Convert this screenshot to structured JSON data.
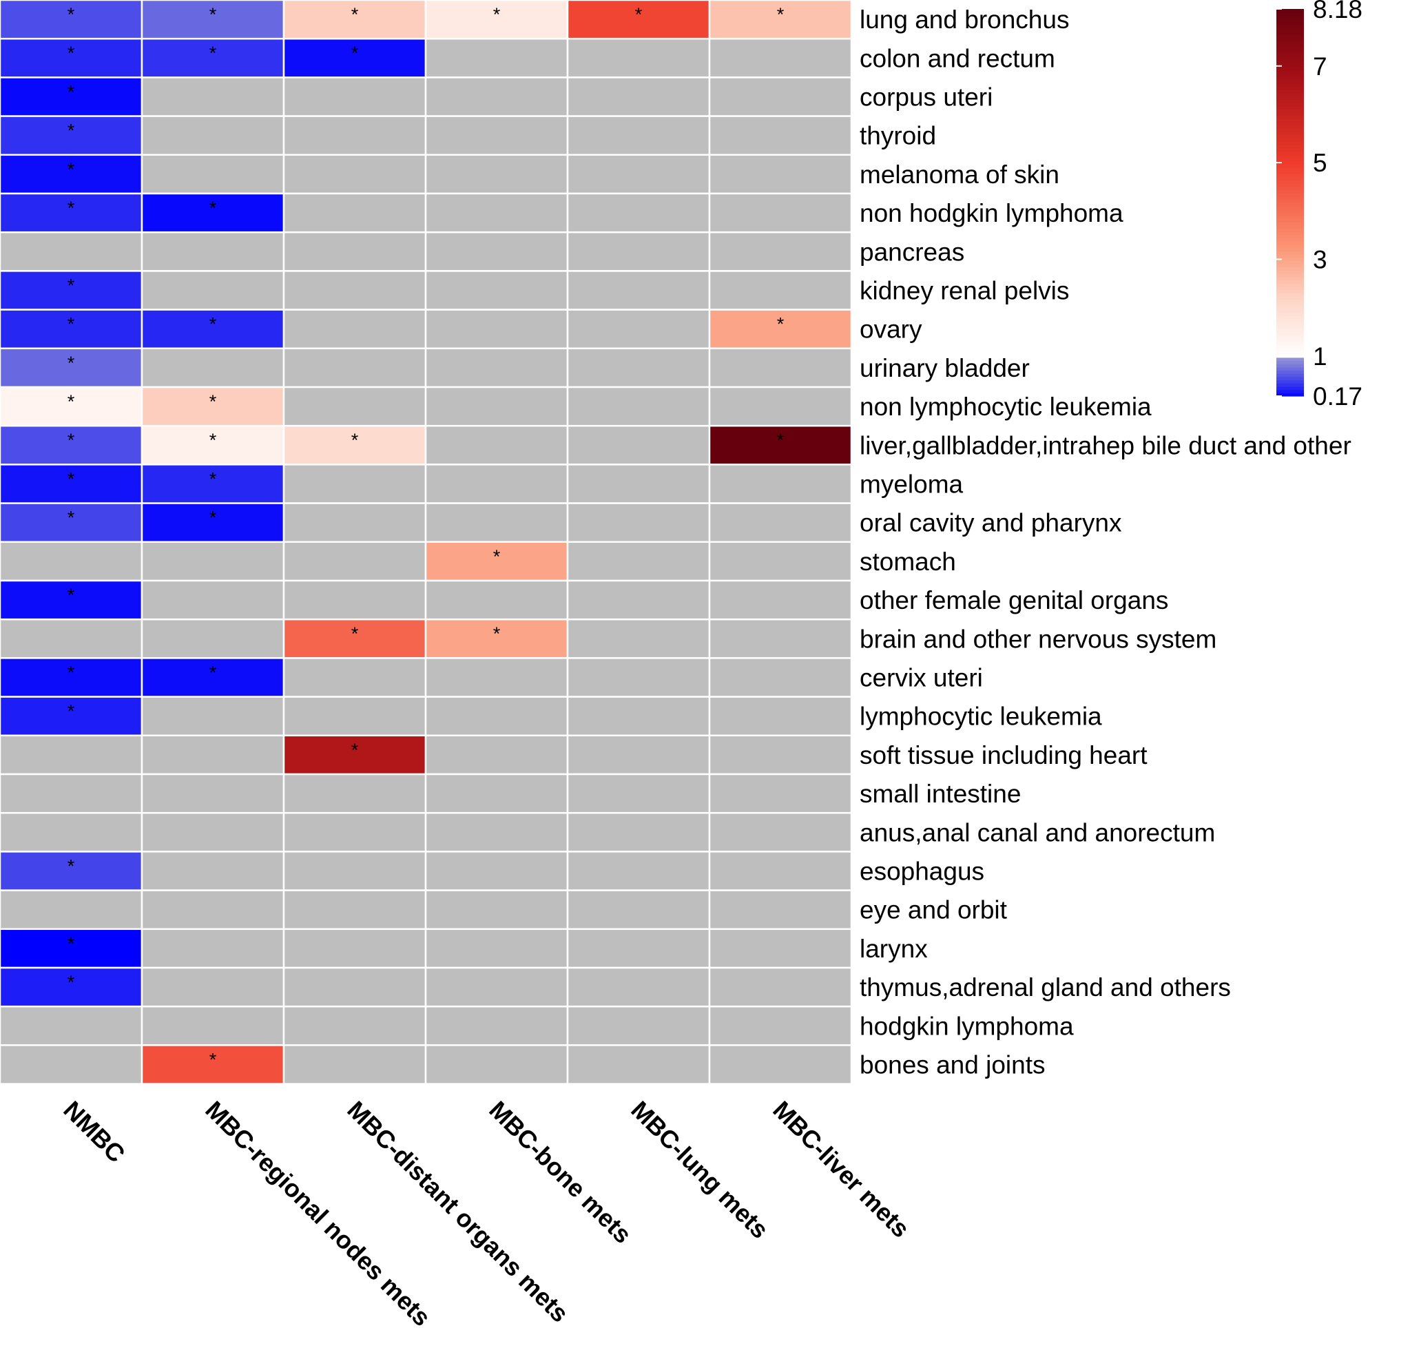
{
  "chart_data": {
    "type": "heatmap",
    "title": "",
    "columns": [
      "NMBC",
      "MBC-regional nodes mets",
      "MBC-distant organs mets",
      "MBC-bone mets",
      "MBC-lung mets",
      "MBC-liver mets"
    ],
    "rows": [
      "lung and bronchus",
      "colon and rectum",
      "corpus uteri",
      "thyroid",
      "melanoma of skin",
      "non hodgkin lymphoma",
      "pancreas",
      "kidney renal pelvis",
      "ovary",
      "urinary bladder",
      "non lymphocytic leukemia",
      "liver,gallbladder,intrahep bile duct and other",
      "myeloma",
      "oral cavity and pharynx",
      "stomach",
      "other female genital organs",
      "brain and other nervous system",
      "cervix uteri",
      "lymphocytic leukemia",
      "soft tissue including heart",
      "small intestine",
      "anus,anal canal and anorectum",
      "esophagus",
      "eye and orbit",
      "larynx",
      "thymus,adrenal gland and others",
      "hodgkin lymphoma",
      "bones and joints"
    ],
    "values": [
      [
        0.55,
        0.7,
        2.3,
        1.6,
        4.8,
        2.5
      ],
      [
        0.35,
        0.4,
        0.22,
        null,
        null,
        null
      ],
      [
        0.2,
        null,
        null,
        null,
        null,
        null
      ],
      [
        0.4,
        null,
        null,
        null,
        null,
        null
      ],
      [
        0.22,
        null,
        null,
        null,
        null,
        null
      ],
      [
        0.35,
        0.2,
        null,
        null,
        null,
        null
      ],
      [
        null,
        null,
        null,
        null,
        null,
        null
      ],
      [
        0.35,
        null,
        null,
        null,
        null,
        null
      ],
      [
        0.35,
        0.35,
        null,
        null,
        null,
        3.0
      ],
      [
        0.7,
        null,
        null,
        null,
        null,
        null
      ],
      [
        1.3,
        2.3,
        null,
        null,
        null,
        null
      ],
      [
        0.55,
        1.4,
        2.0,
        null,
        null,
        8.18
      ],
      [
        0.25,
        0.35,
        null,
        null,
        null,
        null
      ],
      [
        0.5,
        0.22,
        null,
        null,
        null,
        null
      ],
      [
        null,
        null,
        null,
        3.0,
        null,
        null
      ],
      [
        0.22,
        null,
        null,
        null,
        null,
        null
      ],
      [
        null,
        null,
        4.2,
        3.0,
        null,
        null
      ],
      [
        0.22,
        0.22,
        null,
        null,
        null,
        null
      ],
      [
        0.3,
        null,
        null,
        null,
        null,
        null
      ],
      [
        null,
        null,
        6.5,
        null,
        null,
        null
      ],
      [
        null,
        null,
        null,
        null,
        null,
        null
      ],
      [
        null,
        null,
        null,
        null,
        null,
        null
      ],
      [
        0.5,
        null,
        null,
        null,
        null,
        null
      ],
      [
        null,
        null,
        null,
        null,
        null,
        null
      ],
      [
        0.17,
        null,
        null,
        null,
        null,
        null
      ],
      [
        0.3,
        null,
        null,
        null,
        null,
        null
      ],
      [
        null,
        null,
        null,
        null,
        null,
        null
      ],
      [
        null,
        4.6,
        null,
        null,
        null,
        null
      ]
    ],
    "significant": [
      [
        true,
        true,
        true,
        true,
        true,
        true
      ],
      [
        true,
        true,
        true,
        false,
        false,
        false
      ],
      [
        true,
        false,
        false,
        false,
        false,
        false
      ],
      [
        true,
        false,
        false,
        false,
        false,
        false
      ],
      [
        true,
        false,
        false,
        false,
        false,
        false
      ],
      [
        true,
        true,
        false,
        false,
        false,
        false
      ],
      [
        false,
        false,
        false,
        false,
        false,
        false
      ],
      [
        true,
        false,
        false,
        false,
        false,
        false
      ],
      [
        true,
        true,
        false,
        false,
        false,
        true
      ],
      [
        true,
        false,
        false,
        false,
        false,
        false
      ],
      [
        true,
        true,
        false,
        false,
        false,
        false
      ],
      [
        true,
        true,
        true,
        false,
        false,
        true
      ],
      [
        true,
        true,
        false,
        false,
        false,
        false
      ],
      [
        true,
        true,
        false,
        false,
        false,
        false
      ],
      [
        false,
        false,
        false,
        true,
        false,
        false
      ],
      [
        true,
        false,
        false,
        false,
        false,
        false
      ],
      [
        false,
        false,
        true,
        true,
        false,
        false
      ],
      [
        true,
        true,
        false,
        false,
        false,
        false
      ],
      [
        true,
        false,
        false,
        false,
        false,
        false
      ],
      [
        false,
        false,
        true,
        false,
        false,
        false
      ],
      [
        false,
        false,
        false,
        false,
        false,
        false
      ],
      [
        false,
        false,
        false,
        false,
        false,
        false
      ],
      [
        true,
        false,
        false,
        false,
        false,
        false
      ],
      [
        false,
        false,
        false,
        false,
        false,
        false
      ],
      [
        true,
        false,
        false,
        false,
        false,
        false
      ],
      [
        true,
        false,
        false,
        false,
        false,
        false
      ],
      [
        false,
        false,
        false,
        false,
        false,
        false
      ],
      [
        false,
        true,
        false,
        false,
        false,
        false
      ]
    ],
    "significance_marker": "*",
    "colorbar": {
      "min": 0.17,
      "max": 8.18,
      "ticks": [
        0.17,
        1,
        3,
        5,
        7,
        8.18
      ],
      "tick_labels": [
        "0.17",
        "1",
        "3",
        "5",
        "7",
        "8.18"
      ],
      "low_color": "#0000ff",
      "mid_color": "#ffffff",
      "high_color": "#67000d",
      "na_color": "#bebebe"
    }
  }
}
